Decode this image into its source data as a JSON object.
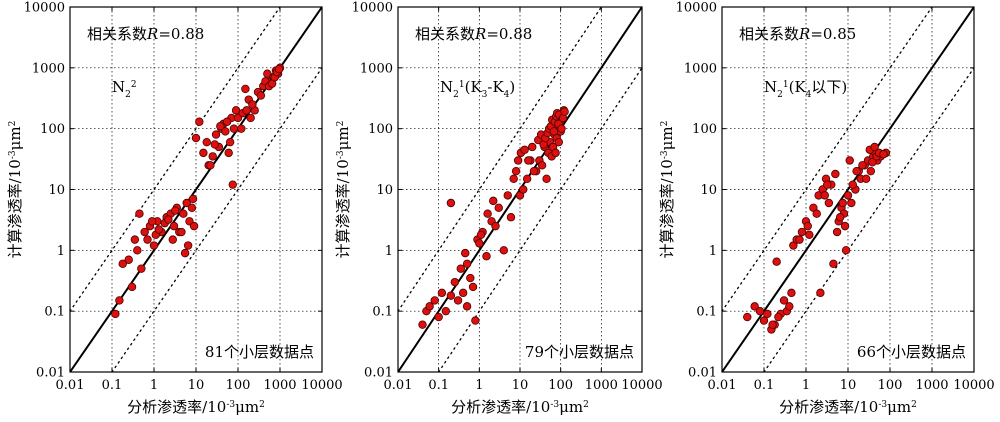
{
  "chart_data": [
    {
      "type": "scatter",
      "xlabel": "分析渗透率/10⁻³μm²",
      "ylabel": "计算渗透率/10⁻³μm²",
      "xscale": "log",
      "yscale": "log",
      "xlim": [
        0.01,
        10000
      ],
      "ylim": [
        0.01,
        10000
      ],
      "x_ticks": [
        "0.01",
        "0.1",
        "1",
        "10",
        "100",
        "1000",
        "10000"
      ],
      "y_ticks": [
        "0.01",
        "0.1",
        "1",
        "10",
        "100",
        "1000",
        "10000"
      ],
      "grid": true,
      "corr_text": "相关系数R=0.88",
      "layer_text": "N₂²",
      "count_text": "81个小层数据点",
      "x": [
        0.12,
        0.18,
        0.25,
        0.35,
        0.5,
        0.6,
        0.8,
        1.0,
        1.2,
        1.5,
        2.0,
        2.5,
        3.0,
        3.5,
        4.0,
        5.0,
        6.0,
        7.0,
        8.0,
        9.0,
        0.15,
        0.3,
        0.7,
        1.1,
        1.8,
        2.2,
        2.8,
        4.5,
        5.5,
        0.4,
        1.3,
        3.2,
        0.9,
        6.5,
        8.5,
        10,
        12,
        15,
        18,
        20,
        25,
        30,
        35,
        40,
        45,
        50,
        60,
        70,
        80,
        90,
        100,
        120,
        150,
        180,
        200,
        250,
        300,
        400,
        500,
        600,
        700,
        800,
        900,
        1000,
        22,
        28,
        38,
        55,
        65,
        75,
        130,
        160,
        220,
        350,
        450,
        550,
        650,
        750,
        850,
        950,
        0.45
      ],
      "y": [
        0.09,
        0.6,
        0.7,
        1.5,
        0.5,
        2.0,
        2.5,
        1.2,
        3.0,
        2.0,
        3.5,
        4.0,
        2.5,
        5.0,
        2.0,
        4.0,
        6.0,
        3.0,
        5.0,
        2.5,
        0.15,
        0.25,
        1.5,
        1.8,
        2.8,
        3.2,
        1.5,
        2.0,
        0.9,
        1.0,
        2.2,
        4.5,
        3.0,
        1.2,
        7.0,
        70,
        130,
        40,
        60,
        25,
        35,
        80,
        50,
        100,
        120,
        90,
        40,
        150,
        100,
        200,
        150,
        100,
        450,
        300,
        150,
        200,
        400,
        500,
        800,
        600,
        700,
        900,
        800,
        1000,
        25,
        55,
        110,
        130,
        60,
        12,
        180,
        200,
        250,
        350,
        600,
        500,
        550,
        700,
        850,
        950,
        4.0
      ]
    },
    {
      "type": "scatter",
      "xlabel": "分析渗透率/10⁻³μm²",
      "ylabel": "计算渗透率/10⁻³μm²",
      "xscale": "log",
      "yscale": "log",
      "xlim": [
        0.01,
        10000
      ],
      "ylim": [
        0.01,
        10000
      ],
      "x_ticks": [
        "0.01",
        "0.1",
        "1",
        "10",
        "100",
        "1000",
        "10000"
      ],
      "y_ticks": [
        "0.01",
        "0.1",
        "1",
        "10",
        "100",
        "1000",
        "10000"
      ],
      "grid": true,
      "corr_text": "相关系数R=0.88",
      "layer_text": "N₂¹(K₃-K₄)",
      "count_text": "79个小层数据点",
      "x": [
        0.04,
        0.05,
        0.06,
        0.08,
        0.1,
        0.12,
        0.15,
        0.2,
        0.25,
        0.3,
        0.4,
        0.5,
        0.6,
        0.8,
        0.2,
        0.35,
        0.45,
        0.7,
        0.9,
        1.0,
        1.2,
        1.5,
        2.0,
        2.5,
        3.0,
        4.0,
        5.0,
        6.0,
        0.5,
        1.1,
        1.6,
        2.2,
        7.0,
        8.0,
        9.0,
        10,
        12,
        15,
        18,
        20,
        25,
        30,
        35,
        40,
        45,
        50,
        55,
        60,
        65,
        70,
        75,
        80,
        85,
        90,
        95,
        100,
        110,
        120,
        10.5,
        13,
        16,
        22,
        28,
        33,
        38,
        42,
        48,
        52,
        58,
        62,
        68,
        72,
        78,
        82,
        88,
        92,
        105,
        115,
        125
      ],
      "y": [
        0.06,
        0.1,
        0.12,
        0.15,
        0.08,
        0.2,
        0.1,
        0.18,
        0.3,
        0.15,
        0.2,
        0.12,
        0.35,
        0.07,
        6.0,
        0.5,
        0.9,
        0.25,
        1.5,
        1.3,
        2.0,
        0.8,
        3.0,
        2.5,
        5.0,
        1.0,
        8.0,
        3.5,
        0.6,
        1.8,
        4.0,
        6.5,
        15,
        20,
        30,
        8,
        10,
        15,
        30,
        50,
        20,
        30,
        25,
        50,
        15,
        40,
        60,
        35,
        50,
        80,
        40,
        70,
        100,
        60,
        120,
        90,
        150,
        200,
        40,
        45,
        30,
        20,
        65,
        80,
        55,
        70,
        85,
        100,
        110,
        140,
        90,
        130,
        160,
        180,
        120,
        170,
        100,
        150,
        190
      ]
    },
    {
      "type": "scatter",
      "xlabel": "分析渗透率/10⁻³μm²",
      "ylabel": "计算渗透率/10⁻³μm²",
      "xscale": "log",
      "yscale": "log",
      "xlim": [
        0.01,
        10000
      ],
      "ylim": [
        0.01,
        10000
      ],
      "x_ticks": [
        "0.01",
        "0.1",
        "1",
        "10",
        "100",
        "1000",
        "10000"
      ],
      "y_ticks": [
        "0.01",
        "0.1",
        "1",
        "10",
        "100",
        "1000",
        "10000"
      ],
      "grid": true,
      "corr_text": "相关系数R=0.85",
      "layer_text": "N₂¹(K₄以下)",
      "count_text": "66个小层数据点",
      "x": [
        0.04,
        0.06,
        0.08,
        0.1,
        0.12,
        0.15,
        0.18,
        0.2,
        0.25,
        0.3,
        0.35,
        0.4,
        0.5,
        0.6,
        0.8,
        1.0,
        1.2,
        1.5,
        2.0,
        2.5,
        3.0,
        3.5,
        4.0,
        5.0,
        6.0,
        7.0,
        8.0,
        9.0,
        10,
        12,
        15,
        18,
        20,
        25,
        30,
        35,
        40,
        45,
        50,
        60,
        80,
        0.16,
        0.22,
        0.45,
        0.7,
        1.1,
        1.8,
        2.2,
        2.8,
        3.2,
        4.5,
        5.5,
        6.5,
        7.5,
        8.5,
        11,
        13,
        16,
        22,
        27,
        33,
        38,
        43,
        48,
        55,
        70
      ],
      "y": [
        0.08,
        0.12,
        0.1,
        0.07,
        0.09,
        0.05,
        0.06,
        0.65,
        0.09,
        0.15,
        0.1,
        0.12,
        1.2,
        1.5,
        2.0,
        3.0,
        1.8,
        5.0,
        8.0,
        10,
        15,
        6.0,
        12,
        18,
        3.0,
        5.0,
        4.0,
        1.0,
        8.0,
        6.0,
        10,
        20,
        15,
        25,
        30,
        20,
        35,
        40,
        30,
        35,
        40,
        0.06,
        0.08,
        0.2,
        1.5,
        2.5,
        4.0,
        0.2,
        8.0,
        12,
        0.6,
        2.0,
        3.5,
        6.0,
        2.5,
        30,
        12,
        20,
        25,
        15,
        45,
        28,
        50,
        35,
        40,
        38
      ]
    }
  ]
}
